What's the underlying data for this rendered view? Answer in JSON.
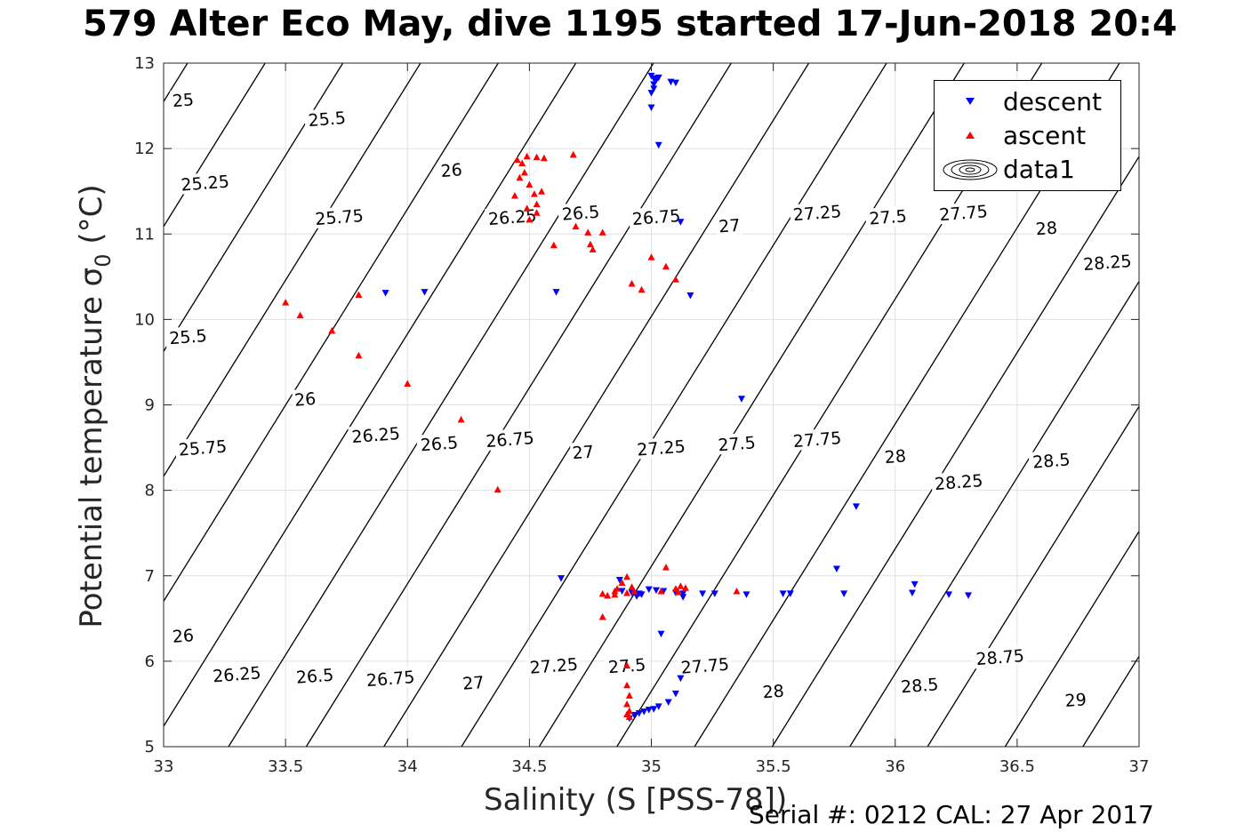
{
  "title": "579 Alter Eco May, dive 1195 started 17-Jun-2018 20:4",
  "footer": "Serial #: 0212  CAL: 27 Apr 2017",
  "chart_data": {
    "type": "scatter",
    "xlabel": "Salinity (S [PSS-78])",
    "ylabel_main": "Potential temperature σ",
    "ylabel_sub": "0",
    "ylabel_unit": "(°C)",
    "xlim": [
      33,
      37
    ],
    "ylim": [
      5,
      13
    ],
    "xticks": [
      "33",
      "33.5",
      "34",
      "34.5",
      "35",
      "35.5",
      "36",
      "36.5",
      "37"
    ],
    "yticks": [
      "5",
      "6",
      "7",
      "8",
      "9",
      "10",
      "11",
      "12",
      "13"
    ],
    "grid": true,
    "legend_position": "top-right",
    "colors": {
      "descent": "#0000ff",
      "ascent": "#ff0000",
      "contour": "#000000"
    },
    "series": [
      {
        "name": "descent",
        "marker": "triangle-down",
        "color": "#0000ff",
        "points": [
          [
            35.0,
            12.85
          ],
          [
            35.01,
            12.82
          ],
          [
            35.03,
            12.83
          ],
          [
            35.02,
            12.8
          ],
          [
            35.01,
            12.75
          ],
          [
            35.01,
            12.7
          ],
          [
            35.0,
            12.65
          ],
          [
            35.08,
            12.78
          ],
          [
            35.1,
            12.77
          ],
          [
            35.0,
            12.48
          ],
          [
            35.03,
            12.04
          ],
          [
            35.12,
            11.14
          ],
          [
            35.16,
            10.28
          ],
          [
            34.61,
            10.32
          ],
          [
            34.07,
            10.32
          ],
          [
            33.91,
            10.31
          ],
          [
            35.37,
            9.07
          ],
          [
            35.84,
            7.81
          ],
          [
            35.76,
            7.08
          ],
          [
            34.63,
            6.97
          ],
          [
            34.87,
            6.95
          ],
          [
            36.08,
            6.9
          ],
          [
            34.88,
            6.82
          ],
          [
            34.92,
            6.8
          ],
          [
            34.95,
            6.79
          ],
          [
            34.99,
            6.84
          ],
          [
            35.02,
            6.83
          ],
          [
            35.05,
            6.82
          ],
          [
            35.1,
            6.8
          ],
          [
            35.13,
            6.79
          ],
          [
            35.21,
            6.79
          ],
          [
            35.26,
            6.79
          ],
          [
            35.39,
            6.78
          ],
          [
            35.54,
            6.79
          ],
          [
            35.57,
            6.79
          ],
          [
            35.79,
            6.79
          ],
          [
            36.07,
            6.8
          ],
          [
            36.22,
            6.78
          ],
          [
            36.3,
            6.77
          ],
          [
            34.94,
            6.76
          ],
          [
            34.96,
            6.78
          ],
          [
            35.13,
            6.75
          ],
          [
            35.04,
            6.32
          ],
          [
            35.12,
            5.8
          ],
          [
            35.1,
            5.62
          ],
          [
            35.07,
            5.52
          ],
          [
            35.03,
            5.47
          ],
          [
            35.01,
            5.44
          ],
          [
            34.99,
            5.43
          ],
          [
            34.97,
            5.41
          ],
          [
            34.95,
            5.39
          ],
          [
            34.93,
            5.37
          ],
          [
            34.91,
            5.33
          ]
        ]
      },
      {
        "name": "ascent",
        "marker": "triangle-up",
        "color": "#ff0000",
        "points": [
          [
            34.45,
            11.87
          ],
          [
            34.47,
            11.83
          ],
          [
            34.49,
            11.91
          ],
          [
            34.53,
            11.9
          ],
          [
            34.56,
            11.89
          ],
          [
            34.68,
            11.93
          ],
          [
            34.48,
            11.72
          ],
          [
            34.46,
            11.66
          ],
          [
            34.5,
            11.58
          ],
          [
            34.52,
            11.47
          ],
          [
            34.55,
            11.5
          ],
          [
            34.44,
            11.45
          ],
          [
            34.53,
            11.35
          ],
          [
            34.49,
            11.3
          ],
          [
            34.53,
            11.25
          ],
          [
            34.5,
            11.17
          ],
          [
            34.69,
            11.09
          ],
          [
            34.74,
            11.02
          ],
          [
            34.8,
            11.02
          ],
          [
            34.75,
            10.88
          ],
          [
            34.6,
            10.87
          ],
          [
            34.76,
            10.82
          ],
          [
            35.0,
            10.73
          ],
          [
            35.06,
            10.62
          ],
          [
            35.1,
            10.47
          ],
          [
            34.92,
            10.42
          ],
          [
            34.96,
            10.35
          ],
          [
            33.5,
            10.2
          ],
          [
            33.56,
            10.05
          ],
          [
            33.8,
            10.29
          ],
          [
            33.69,
            9.87
          ],
          [
            33.8,
            9.58
          ],
          [
            34.0,
            9.25
          ],
          [
            34.22,
            8.83
          ],
          [
            34.37,
            8.01
          ],
          [
            35.06,
            7.1
          ],
          [
            34.9,
            6.99
          ],
          [
            34.88,
            6.92
          ],
          [
            34.86,
            6.85
          ],
          [
            34.92,
            6.87
          ],
          [
            34.85,
            6.82
          ],
          [
            34.8,
            6.79
          ],
          [
            34.82,
            6.77
          ],
          [
            34.85,
            6.78
          ],
          [
            34.9,
            6.8
          ],
          [
            34.93,
            6.82
          ],
          [
            35.04,
            6.82
          ],
          [
            35.1,
            6.85
          ],
          [
            35.12,
            6.88
          ],
          [
            35.14,
            6.86
          ],
          [
            35.11,
            6.81
          ],
          [
            35.35,
            6.82
          ],
          [
            34.8,
            6.52
          ],
          [
            34.9,
            5.95
          ],
          [
            34.9,
            5.72
          ],
          [
            34.91,
            5.6
          ],
          [
            34.9,
            5.5
          ],
          [
            34.91,
            5.42
          ],
          [
            34.9,
            5.38
          ],
          [
            34.91,
            5.35
          ]
        ]
      }
    ],
    "contours": {
      "name": "data1",
      "label_color": "#000000",
      "levels": [
        "25",
        "25.25",
        "25.5",
        "25.75",
        "26",
        "26.25",
        "26.5",
        "26.75",
        "27",
        "27.25",
        "27.5",
        "27.75",
        "28",
        "28.25",
        "28.5",
        "28.75",
        "29"
      ],
      "labels": [
        {
          "text": "25",
          "s": 33.08,
          "t": 12.57
        },
        {
          "text": "25.25",
          "s": 33.17,
          "t": 11.6
        },
        {
          "text": "25.5",
          "s": 33.67,
          "t": 12.35
        },
        {
          "text": "25.75",
          "s": 33.72,
          "t": 11.2
        },
        {
          "text": "26",
          "s": 34.18,
          "t": 11.75
        },
        {
          "text": "26.25",
          "s": 34.43,
          "t": 11.2
        },
        {
          "text": "26.5",
          "s": 34.71,
          "t": 11.25
        },
        {
          "text": "26.75",
          "s": 35.02,
          "t": 11.2
        },
        {
          "text": "27",
          "s": 35.32,
          "t": 11.1
        },
        {
          "text": "27.25",
          "s": 35.68,
          "t": 11.25
        },
        {
          "text": "27.5",
          "s": 35.97,
          "t": 11.2
        },
        {
          "text": "27.75",
          "s": 36.28,
          "t": 11.25
        },
        {
          "text": "28",
          "s": 36.62,
          "t": 11.07
        },
        {
          "text": "28.25",
          "s": 36.87,
          "t": 10.67
        },
        {
          "text": "25.5",
          "s": 33.1,
          "t": 9.8
        },
        {
          "text": "25.75",
          "s": 33.16,
          "t": 8.5
        },
        {
          "text": "26",
          "s": 33.58,
          "t": 9.07
        },
        {
          "text": "26.25",
          "s": 33.87,
          "t": 8.65
        },
        {
          "text": "26.5",
          "s": 34.13,
          "t": 8.55
        },
        {
          "text": "26.75",
          "s": 34.42,
          "t": 8.6
        },
        {
          "text": "27",
          "s": 34.72,
          "t": 8.45
        },
        {
          "text": "27.25",
          "s": 35.04,
          "t": 8.5
        },
        {
          "text": "27.5",
          "s": 35.35,
          "t": 8.55
        },
        {
          "text": "27.75",
          "s": 35.68,
          "t": 8.6
        },
        {
          "text": "28",
          "s": 36.0,
          "t": 8.4
        },
        {
          "text": "28.25",
          "s": 36.26,
          "t": 8.1
        },
        {
          "text": "28.5",
          "s": 36.64,
          "t": 8.35
        },
        {
          "text": "26",
          "s": 33.08,
          "t": 6.3
        },
        {
          "text": "26.25",
          "s": 33.3,
          "t": 5.85
        },
        {
          "text": "26.5",
          "s": 33.62,
          "t": 5.83
        },
        {
          "text": "26.75",
          "s": 33.93,
          "t": 5.8
        },
        {
          "text": "27",
          "s": 34.27,
          "t": 5.75
        },
        {
          "text": "27.25",
          "s": 34.6,
          "t": 5.95
        },
        {
          "text": "27.5",
          "s": 34.9,
          "t": 5.95
        },
        {
          "text": "27.75",
          "s": 35.22,
          "t": 5.95
        },
        {
          "text": "28",
          "s": 35.5,
          "t": 5.65
        },
        {
          "text": "28.5",
          "s": 36.1,
          "t": 5.72
        },
        {
          "text": "28.75",
          "s": 36.43,
          "t": 6.05
        },
        {
          "text": "29",
          "s": 36.74,
          "t": 5.55
        }
      ]
    }
  }
}
